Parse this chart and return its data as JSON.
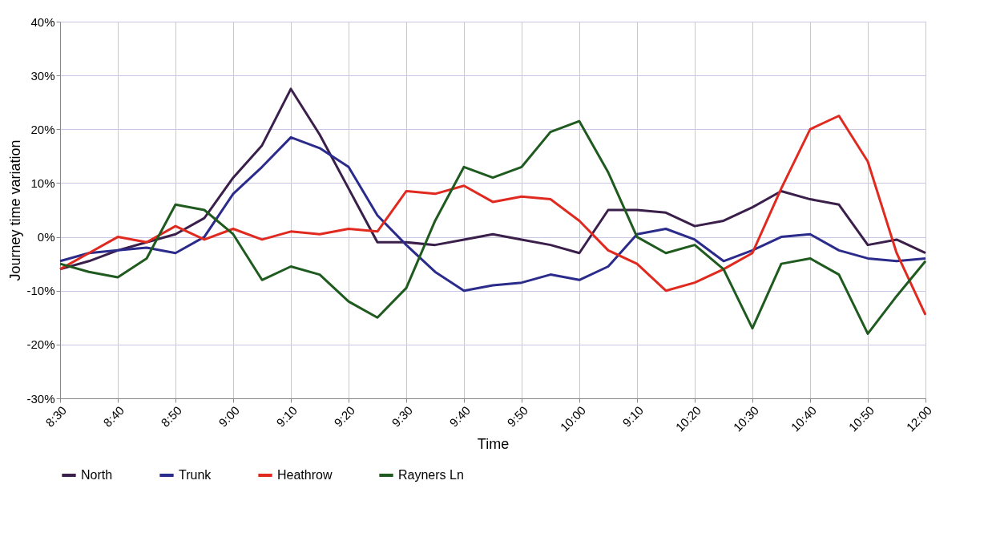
{
  "chart_data": {
    "type": "line",
    "xlabel": "Time",
    "ylabel": "Journey time variation",
    "categories": [
      "8:30",
      null,
      "8:40",
      null,
      "8:50",
      null,
      "9:00",
      null,
      "9:10",
      null,
      "9:20",
      null,
      "9:30",
      null,
      "9:40",
      null,
      "9:50",
      null,
      "10:00",
      null,
      "9:10",
      null,
      "10:20",
      null,
      "10:30",
      null,
      "10:40",
      null,
      "10:50",
      null,
      "12:00"
    ],
    "series": [
      {
        "name": "North",
        "color": "#3b1f4b",
        "values": [
          -6,
          -4.5,
          -2.5,
          -1,
          0.5,
          3.5,
          11,
          17,
          27.5,
          19,
          9,
          -1,
          -1,
          -1.5,
          -0.5,
          0.5,
          -0.5,
          -1.5,
          -3,
          5,
          5,
          4.5,
          2,
          3,
          5.5,
          8.5,
          7,
          6,
          -1.5,
          -0.5,
          -3
        ]
      },
      {
        "name": "Trunk",
        "color": "#2b2b8c",
        "values": [
          -4.5,
          -3,
          -2.5,
          -2,
          -3,
          0,
          8,
          13,
          18.5,
          16.5,
          13,
          4,
          -1.5,
          -6.5,
          -10,
          -9,
          -8.5,
          -7,
          -8,
          -5.5,
          0.5,
          1.5,
          -0.5,
          -4.5,
          -2.5,
          0,
          0.5,
          -2.5,
          -4,
          -4.5,
          -4
        ]
      },
      {
        "name": "Heathrow",
        "color": "#e02a20",
        "values": [
          -6,
          -3,
          0,
          -1,
          2,
          -0.5,
          1.5,
          -0.5,
          1,
          0.5,
          1.5,
          1,
          8.5,
          8,
          9.5,
          6.5,
          7.5,
          7,
          3,
          -2.5,
          -5,
          -10,
          -8.5,
          -6,
          -3,
          9,
          20,
          22.5,
          14,
          -3,
          -14.5
        ]
      },
      {
        "name": "Rayners Ln",
        "color": "#1f5a1f",
        "values": [
          -5,
          -6.5,
          -7.5,
          -4,
          6,
          5,
          0.5,
          -8,
          -5.5,
          -7,
          -12,
          -15,
          -9.5,
          3,
          13,
          11,
          13,
          19.5,
          21.5,
          12,
          0,
          -3,
          -1.5,
          -6,
          -17,
          -5,
          -4,
          -7,
          -18,
          -11,
          -4.5
        ]
      }
    ],
    "ylim": [
      -30,
      40
    ],
    "yticks": [
      {
        "value": -30,
        "label": "-30%"
      },
      {
        "value": -20,
        "label": "-20%"
      },
      {
        "value": -10,
        "label": "-10%"
      },
      {
        "value": 0,
        "label": "0%"
      },
      {
        "value": 10,
        "label": "10%"
      },
      {
        "value": 20,
        "label": "20%"
      },
      {
        "value": 30,
        "label": "30%"
      },
      {
        "value": 40,
        "label": "40%"
      }
    ],
    "grid": true,
    "legend": "bottom"
  }
}
